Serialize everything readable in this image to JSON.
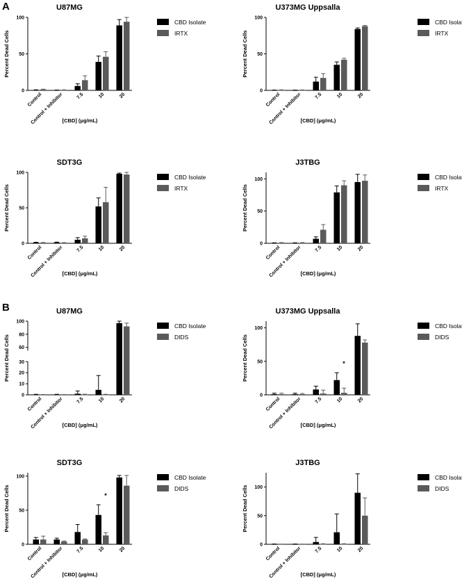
{
  "figure": {
    "section_labels": [
      "A",
      "B"
    ]
  },
  "colors": {
    "series1": "#000000",
    "series2": "#5a5a5a"
  },
  "chart_data": [
    {
      "type": "bar",
      "section": "A",
      "title": "U87MG",
      "ylabel": "Percent Dead Cells",
      "xlabel": "[CBD] (μg/mL)",
      "categories": [
        "Control",
        "Control + Inhibitor",
        "7.5",
        "10",
        "20"
      ],
      "ylim": [
        0,
        100
      ],
      "yticks": [
        0,
        50,
        100
      ],
      "series": [
        {
          "name": "CBD Isolate",
          "values": [
            0.5,
            0.3,
            6,
            39,
            89
          ],
          "errors": [
            0.3,
            0.2,
            3,
            8,
            8
          ]
        },
        {
          "name": "IRTX",
          "values": [
            1.2,
            0.5,
            14,
            46,
            94
          ],
          "errors": [
            0.5,
            0.3,
            6,
            7,
            6
          ]
        }
      ]
    },
    {
      "type": "bar",
      "section": "A",
      "title": "U373MG Uppsalla",
      "ylabel": "Percent Dead Cells",
      "xlabel": "[CBD] (μg/mL)",
      "categories": [
        "Control",
        "Control + Inhibitor",
        "7.5",
        "10",
        "20"
      ],
      "ylim": [
        0,
        100
      ],
      "yticks": [
        0,
        50,
        100
      ],
      "series": [
        {
          "name": "CBD Isolate",
          "values": [
            0.3,
            0.2,
            12,
            35,
            84
          ],
          "errors": [
            0.2,
            0.2,
            6,
            4,
            1.5
          ]
        },
        {
          "name": "IRTX",
          "values": [
            0.5,
            0.4,
            17,
            42,
            88
          ],
          "errors": [
            0.3,
            0.3,
            6,
            2,
            1
          ]
        }
      ]
    },
    {
      "type": "bar",
      "section": "A",
      "title": "SDT3G",
      "ylabel": "Percent Dead Cells",
      "xlabel": "[CBD] (μg/mL)",
      "categories": [
        "Control",
        "Control + Inhibitor",
        "7.5",
        "10",
        "20"
      ],
      "ylim": [
        0,
        100
      ],
      "yticks": [
        0,
        50,
        100
      ],
      "series": [
        {
          "name": "CBD Isolate",
          "values": [
            1,
            1.2,
            5,
            52,
            98
          ],
          "errors": [
            0.5,
            0.5,
            3,
            12,
            1
          ]
        },
        {
          "name": "IRTX",
          "values": [
            0.8,
            0.7,
            7,
            58,
            97
          ],
          "errors": [
            0.4,
            0.3,
            3,
            21,
            3
          ]
        }
      ]
    },
    {
      "type": "bar",
      "section": "A",
      "title": "J3TBG",
      "ylabel": "Percent Dead Cells",
      "xlabel": "[CBD] (μg/mL)",
      "categories": [
        "Control",
        "Control + Inhibitor",
        "7.5",
        "10",
        "20"
      ],
      "ylim": [
        0,
        110
      ],
      "yticks": [
        0,
        50,
        100
      ],
      "series": [
        {
          "name": "CBD Isolate",
          "values": [
            0.5,
            0.5,
            7,
            79,
            95
          ],
          "errors": [
            0.3,
            0.3,
            3,
            10,
            12
          ]
        },
        {
          "name": "IRTX",
          "values": [
            0.8,
            0.8,
            21,
            90,
            97
          ],
          "errors": [
            0.4,
            0.4,
            8,
            7,
            9
          ]
        }
      ]
    },
    {
      "type": "bar",
      "section": "B",
      "title": "U87MG",
      "ylabel": "Percent Dead Cells",
      "xlabel": "[CBD] (μg/mL)",
      "categories": [
        "Control",
        "Control + Inhibitor",
        "7.5",
        "10",
        "20"
      ],
      "ylim": [
        0,
        100
      ],
      "axis_break": [
        30,
        55
      ],
      "yticks": [
        0,
        10,
        20,
        30,
        60,
        80,
        100
      ],
      "series": [
        {
          "name": "CBD Isolate",
          "values": [
            0.2,
            0.2,
            1,
            4.5,
            97
          ],
          "errors": [
            0.3,
            0.3,
            2.5,
            13,
            3
          ]
        },
        {
          "name": "DIDS",
          "values": [
            0.1,
            0.1,
            0.3,
            0.2,
            92
          ],
          "errors": [
            0.2,
            0.2,
            0.3,
            0.3,
            5
          ]
        }
      ]
    },
    {
      "type": "bar",
      "section": "B",
      "title": "U373MG Uppsalla",
      "ylabel": "Percent Dead Cells",
      "xlabel": "[CBD] (μg/mL)",
      "categories": [
        "Control",
        "Control + Inhibitor",
        "7.5",
        "10",
        "20"
      ],
      "ylim": [
        0,
        110
      ],
      "yticks": [
        0,
        50,
        100
      ],
      "series": [
        {
          "name": "CBD Isolate",
          "values": [
            1,
            1,
            8,
            22,
            88
          ],
          "errors": [
            1.5,
            1.5,
            5,
            11,
            18
          ]
        },
        {
          "name": "DIDS",
          "values": [
            1,
            1,
            2,
            3,
            78
          ],
          "errors": [
            1.5,
            1,
            5,
            7,
            4
          ]
        }
      ],
      "annotations": [
        {
          "text": "*",
          "category": "10"
        }
      ]
    },
    {
      "type": "bar",
      "section": "B",
      "title": "SDT3G",
      "ylabel": "Percent Dead Cells",
      "xlabel": "[CBD] (μg/mL)",
      "categories": [
        "Control",
        "Control + Inhibitor",
        "7.5",
        "10",
        "20"
      ],
      "ylim": [
        0,
        105
      ],
      "yticks": [
        0,
        50,
        100
      ],
      "series": [
        {
          "name": "CBD Isolate",
          "values": [
            7,
            7,
            18,
            43,
            98
          ],
          "errors": [
            3,
            2,
            11,
            15,
            3
          ]
        },
        {
          "name": "DIDS",
          "values": [
            7,
            4,
            7,
            13,
            86
          ],
          "errors": [
            5,
            1,
            1,
            4,
            15
          ]
        }
      ],
      "annotations": [
        {
          "text": "*",
          "category": "10"
        }
      ]
    },
    {
      "type": "bar",
      "section": "B",
      "title": "J3TBG",
      "ylabel": "Percent Dead Cells",
      "xlabel": "[CBD] (μg/mL)",
      "categories": [
        "Control",
        "Control + Inhibitor",
        "7.5",
        "10",
        "20"
      ],
      "ylim": [
        0,
        125
      ],
      "yticks": [
        0,
        50,
        100
      ],
      "series": [
        {
          "name": "CBD Isolate",
          "values": [
            0.3,
            0.3,
            4,
            21,
            90
          ],
          "errors": [
            0.3,
            0.3,
            8,
            32,
            33
          ]
        },
        {
          "name": "DIDS",
          "values": [
            0.2,
            0.2,
            0.5,
            0.5,
            50
          ],
          "errors": [
            0.2,
            0.2,
            0.5,
            0.5,
            31
          ]
        }
      ]
    }
  ]
}
